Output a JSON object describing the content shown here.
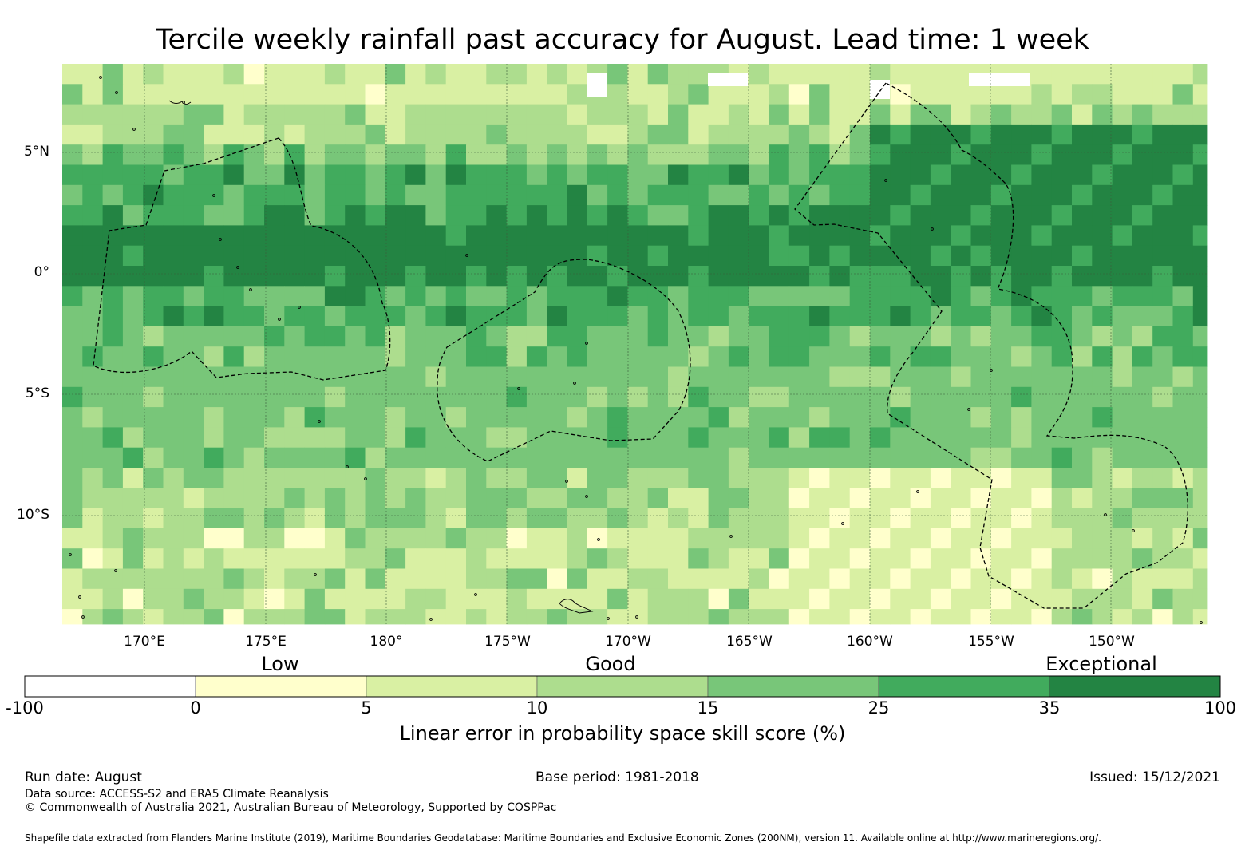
{
  "title": "Tercile weekly rainfall past accuracy for August. Lead time: 1 week",
  "map": {
    "lat_labels": [
      "5°N",
      "0°",
      "5°S",
      "10°S"
    ],
    "lon_labels": [
      "170°E",
      "175°E",
      "180°",
      "175°W",
      "170°W",
      "165°W",
      "160°W",
      "155°W",
      "150°W"
    ],
    "colors": {
      "c_neg": "#ffffff",
      "c0": "#ffffcc",
      "c5": "#d9f0a3",
      "c10": "#addd8e",
      "c15": "#78c679",
      "c25": "#41ab5d",
      "c35": "#238443"
    },
    "boundary_style": "dashed black",
    "gridlines": true
  },
  "colorbar": {
    "categories": [
      "Low",
      "Good",
      "Exceptional"
    ],
    "ticks": [
      "-100",
      "0",
      "5",
      "10",
      "15",
      "25",
      "35",
      "100"
    ],
    "colors": [
      "#ffffff",
      "#ffffcc",
      "#d9f0a3",
      "#addd8e",
      "#78c679",
      "#41ab5d",
      "#238443"
    ],
    "label": "Linear error in probability space skill score (%)"
  },
  "footer": {
    "run_date": "Run date: August",
    "base_period": "Base period: 1981-2018",
    "issued": "Issued: 15/12/2021",
    "data_source": "Data source: ACCESS-S2 and ERA5 Climate Reanalysis",
    "copyright": "© Commonwealth of Australia 2021, Australian Bureau of Meteorology, Supported by COSPPac",
    "shapefile": "Shapefile data extracted from Flanders Marine Institute (2019), Maritime Boundaries Geodatabase: Maritime Boundaries and Exclusive Economic Zones (200NM), version 11. Available online at http://www.marineregions.org/."
  }
}
